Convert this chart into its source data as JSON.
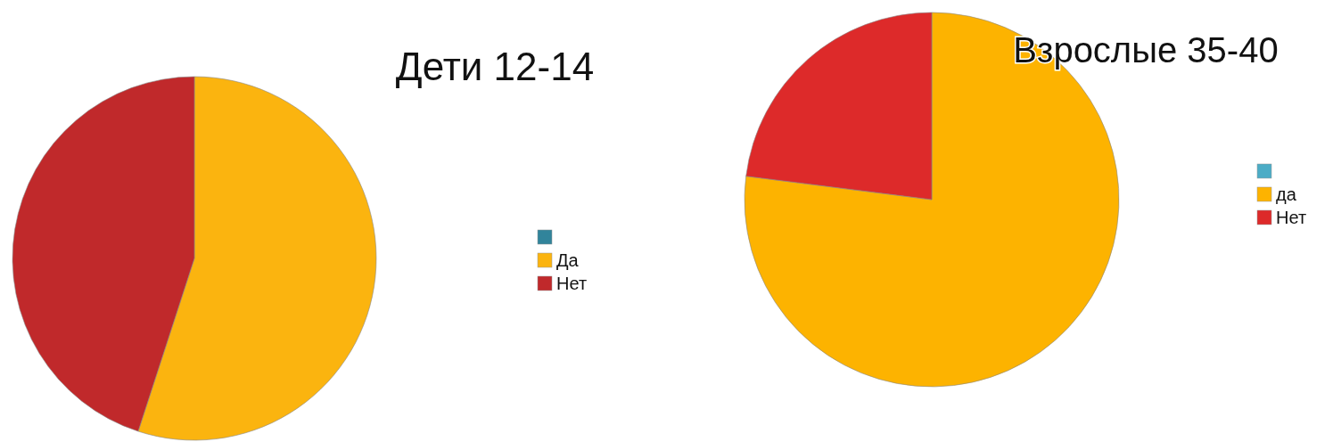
{
  "chart_data": [
    {
      "type": "pie",
      "title": "Дети 12-14",
      "categories": [
        null,
        "Да",
        "Нет"
      ],
      "values": [
        0,
        55,
        45
      ],
      "colors": [
        "#31849b",
        "#fbb40f",
        "#c0292b"
      ],
      "legend": "right"
    },
    {
      "type": "pie",
      "title": "Взрослые 35-40",
      "categories": [
        null,
        "да",
        "Нет"
      ],
      "values": [
        0,
        77,
        23
      ],
      "colors": [
        "#4bacc6",
        "#fdb300",
        "#dd2a2a"
      ],
      "legend": "right"
    }
  ]
}
